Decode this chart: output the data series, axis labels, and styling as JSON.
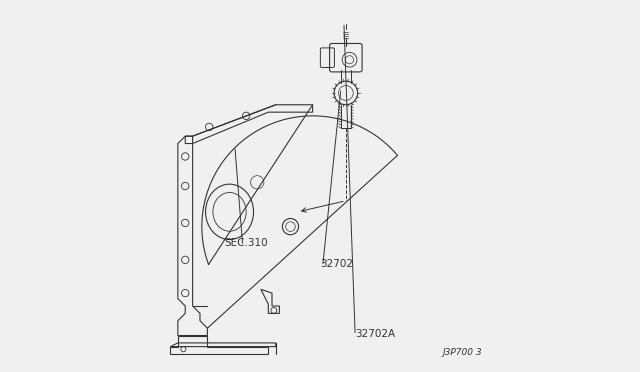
{
  "bg_color": "#f0f0f0",
  "line_color": "#333333",
  "text_color": "#333333",
  "diagram_id": "J3P700 3",
  "part_labels": {
    "32702A": [
      0.595,
      0.085
    ],
    "32702": [
      0.5,
      0.29
    ],
    "SEC.310": [
      0.24,
      0.345
    ]
  },
  "figsize": [
    6.4,
    3.72
  ],
  "dpi": 100
}
